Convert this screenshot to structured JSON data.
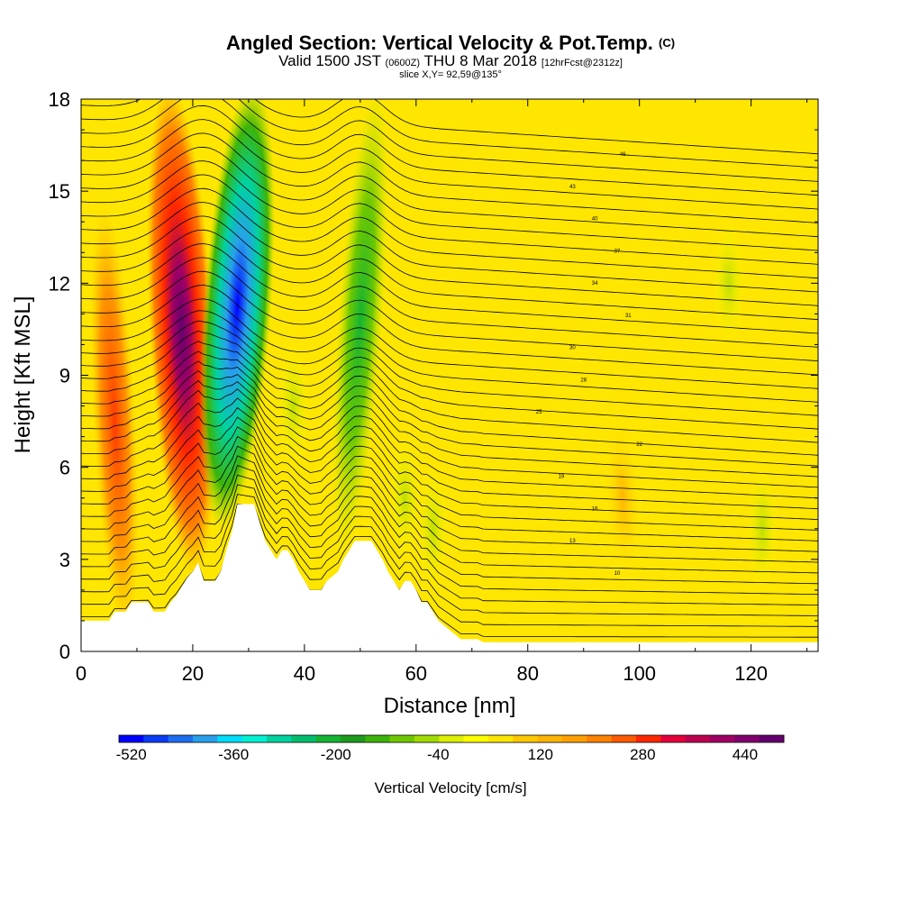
{
  "title": {
    "main": "Angled Section: Vertical Velocity & Pot.Temp.",
    "main_suffix": "(C)",
    "valid": "Valid 1500 JST",
    "valid_z": "(0600Z)",
    "date": "THU 8 Mar 2018",
    "forecast": "[12hrFcst@2312z]",
    "slice": "slice X,Y= 92,59@135°"
  },
  "chart_data": {
    "type": "heatmap",
    "title": "Angled Section: Vertical Velocity & Pot.Temp. (C)",
    "xlabel": "Distance [nm]",
    "ylabel": "Height [Kft MSL]",
    "xlim": [
      0,
      132
    ],
    "ylim": [
      0,
      18
    ],
    "x_ticks": [
      "0",
      "20",
      "40",
      "60",
      "80",
      "100",
      "120"
    ],
    "y_ticks": [
      "0",
      "3",
      "6",
      "9",
      "12",
      "15",
      "18"
    ],
    "colorbar": {
      "label": "Vertical Velocity [cm/s]",
      "min": -520,
      "max": 520,
      "step": 40,
      "tick_labels": [
        "-520",
        "-360",
        "-200",
        "-40",
        "120",
        "280",
        "440"
      ],
      "colors": [
        "#0000ff",
        "#0a3cf5",
        "#1e6ef0",
        "#28a0eb",
        "#00dcfa",
        "#00f0d2",
        "#00d2a0",
        "#00be6e",
        "#14b432",
        "#1e9b1e",
        "#3cb40a",
        "#6ec800",
        "#a0dc00",
        "#dcf000",
        "#ffff00",
        "#ffe600",
        "#ffc800",
        "#ffb400",
        "#ffa000",
        "#ff8200",
        "#ff5a00",
        "#ff2800",
        "#e6003c",
        "#be0050",
        "#a00064",
        "#82006e",
        "#64006e"
      ]
    },
    "velocity_features": [
      {
        "x_center": 18,
        "z_bottom": 3,
        "z_top": 18,
        "max": 440,
        "type": "updraft"
      },
      {
        "x_center": 6,
        "z_bottom": 1,
        "z_top": 14,
        "max": 200,
        "type": "updraft"
      },
      {
        "x_center": 28,
        "z_bottom": 4.5,
        "z_top": 18,
        "min": -480,
        "type": "downdraft"
      },
      {
        "x_center": 50,
        "z_bottom": 3.5,
        "z_top": 18,
        "min": -240,
        "type": "downdraft"
      },
      {
        "x_center": 97,
        "z_bottom": 3,
        "z_top": 7,
        "max": 120,
        "type": "updraft"
      }
    ],
    "terrain": [
      [
        0,
        1
      ],
      [
        5,
        1
      ],
      [
        6,
        1.3
      ],
      [
        8,
        1.3
      ],
      [
        9,
        1.6
      ],
      [
        12,
        1.6
      ],
      [
        13,
        1.3
      ],
      [
        15,
        1.3
      ],
      [
        16,
        1.6
      ],
      [
        17,
        1.8
      ],
      [
        18,
        2.1
      ],
      [
        19,
        2.4
      ],
      [
        20,
        2.6
      ],
      [
        21,
        2.9
      ],
      [
        22,
        2.3
      ],
      [
        24,
        2.3
      ],
      [
        25,
        2.6
      ],
      [
        26,
        3.3
      ],
      [
        27,
        3.9
      ],
      [
        28,
        4.8
      ],
      [
        31,
        4.8
      ],
      [
        32,
        4.2
      ],
      [
        33,
        3.6
      ],
      [
        34,
        3.3
      ],
      [
        35,
        3.0
      ],
      [
        36,
        3.3
      ],
      [
        37,
        3.3
      ],
      [
        38,
        3.0
      ],
      [
        39,
        2.6
      ],
      [
        40,
        2.3
      ],
      [
        41,
        2.0
      ],
      [
        43,
        2.0
      ],
      [
        44,
        2.3
      ],
      [
        46,
        2.6
      ],
      [
        47,
        3.0
      ],
      [
        48,
        3.3
      ],
      [
        49,
        3.6
      ],
      [
        52,
        3.6
      ],
      [
        53,
        3.3
      ],
      [
        54,
        3.0
      ],
      [
        55,
        2.6
      ],
      [
        56,
        2.3
      ],
      [
        57,
        2.0
      ],
      [
        58,
        2.3
      ],
      [
        59,
        2.3
      ],
      [
        60,
        2.0
      ],
      [
        61,
        1.6
      ],
      [
        62,
        1.6
      ],
      [
        63,
        1.3
      ],
      [
        64,
        1.0
      ],
      [
        66,
        0.7
      ],
      [
        68,
        0.4
      ],
      [
        71,
        0.4
      ],
      [
        72,
        0.3
      ],
      [
        132,
        0.3
      ]
    ],
    "isentrope_labels": [
      "10",
      "13",
      "16",
      "19",
      "22",
      "25",
      "28",
      "30",
      "31",
      "34",
      "37",
      "40",
      "43",
      "46"
    ],
    "grid": false,
    "legend": "bottom colorbar"
  }
}
